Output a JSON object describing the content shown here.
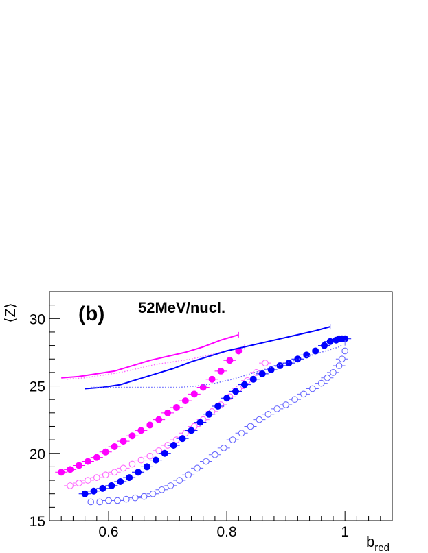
{
  "chart_data": {
    "type": "scatter",
    "panel_label": "(b)",
    "annotation": "52MeV/nucl.",
    "xlabel": "b",
    "xlabel_sub": "red",
    "ylabel": "⟨Z⟩",
    "xlim": [
      0.5,
      1.08
    ],
    "ylim": [
      15,
      32
    ],
    "xticks": [
      {
        "value": 0.6,
        "label": "0.6"
      },
      {
        "value": 0.8,
        "label": "0.8"
      },
      {
        "value": 1.0,
        "label": "1"
      }
    ],
    "yticks": [
      {
        "value": 15,
        "label": "15"
      },
      {
        "value": 20,
        "label": "20"
      },
      {
        "value": 25,
        "label": "25"
      },
      {
        "value": 30,
        "label": "30"
      }
    ],
    "grid": false,
    "series": [
      {
        "style": "filled-marker",
        "color": "#ff00ff",
        "x": [
          0.52,
          0.535,
          0.55,
          0.565,
          0.58,
          0.595,
          0.61,
          0.625,
          0.64,
          0.655,
          0.67,
          0.685,
          0.7,
          0.715,
          0.73,
          0.745,
          0.76,
          0.775,
          0.79,
          0.805,
          0.82
        ],
        "y": [
          18.6,
          18.8,
          19.1,
          19.4,
          19.7,
          20.1,
          20.5,
          20.9,
          21.3,
          21.7,
          22.1,
          22.5,
          23.0,
          23.4,
          23.9,
          24.4,
          24.9,
          25.5,
          26.1,
          26.9,
          27.6
        ]
      },
      {
        "style": "open-marker",
        "color": "#ff66ff",
        "x": [
          0.535,
          0.55,
          0.565,
          0.58,
          0.595,
          0.61,
          0.625,
          0.64,
          0.655,
          0.67,
          0.685,
          0.7,
          0.715,
          0.73,
          0.745,
          0.76,
          0.775,
          0.79,
          0.805,
          0.82,
          0.835,
          0.85,
          0.865
        ],
        "y": [
          17.6,
          17.8,
          18.0,
          18.2,
          18.4,
          18.6,
          18.9,
          19.2,
          19.5,
          19.8,
          20.2,
          20.6,
          21.0,
          21.5,
          22.0,
          22.5,
          23.1,
          23.6,
          24.2,
          24.8,
          25.4,
          26.0,
          26.7
        ]
      },
      {
        "style": "filled-marker",
        "color": "#0000ff",
        "x": [
          0.56,
          0.575,
          0.59,
          0.605,
          0.62,
          0.635,
          0.65,
          0.665,
          0.68,
          0.695,
          0.71,
          0.725,
          0.74,
          0.755,
          0.77,
          0.785,
          0.8,
          0.815,
          0.83,
          0.845,
          0.86,
          0.875,
          0.89,
          0.905,
          0.92,
          0.935,
          0.95,
          0.965,
          0.975,
          0.985,
          0.99,
          0.995,
          1.0
        ],
        "y": [
          17.0,
          17.2,
          17.4,
          17.6,
          17.9,
          18.2,
          18.6,
          19.0,
          19.5,
          20.0,
          20.6,
          21.1,
          21.7,
          22.3,
          22.9,
          23.5,
          24.1,
          24.6,
          25.1,
          25.5,
          25.9,
          26.2,
          26.5,
          26.7,
          27.0,
          27.3,
          27.6,
          28.0,
          28.3,
          28.4,
          28.5,
          28.5,
          28.5
        ]
      },
      {
        "style": "open-marker",
        "color": "#6666ff",
        "x": [
          0.57,
          0.585,
          0.6,
          0.615,
          0.63,
          0.645,
          0.66,
          0.675,
          0.69,
          0.705,
          0.72,
          0.735,
          0.75,
          0.765,
          0.78,
          0.795,
          0.81,
          0.825,
          0.84,
          0.855,
          0.87,
          0.885,
          0.9,
          0.915,
          0.93,
          0.945,
          0.96,
          0.97,
          0.98,
          0.99,
          0.995,
          1.0
        ],
        "y": [
          16.4,
          16.4,
          16.5,
          16.5,
          16.6,
          16.7,
          16.8,
          17.0,
          17.3,
          17.6,
          18.0,
          18.4,
          18.9,
          19.4,
          19.9,
          20.4,
          21.0,
          21.5,
          22.0,
          22.5,
          22.9,
          23.3,
          23.6,
          24.0,
          24.4,
          24.8,
          25.2,
          25.6,
          26.0,
          26.5,
          27.0,
          27.6
        ]
      },
      {
        "style": "solid-line",
        "color": "#ff00ff",
        "x": [
          0.52,
          0.55,
          0.58,
          0.61,
          0.64,
          0.67,
          0.7,
          0.73,
          0.76,
          0.79,
          0.82
        ],
        "y": [
          25.6,
          25.7,
          25.9,
          26.1,
          26.5,
          26.9,
          27.2,
          27.5,
          27.9,
          28.4,
          28.8
        ]
      },
      {
        "style": "dotted-line",
        "color": "#ff66ff",
        "x": [
          0.53,
          0.56,
          0.59,
          0.62,
          0.65,
          0.68,
          0.71,
          0.74,
          0.77,
          0.8,
          0.83
        ],
        "y": [
          25.5,
          25.6,
          25.8,
          26.0,
          26.3,
          26.6,
          26.8,
          27.0,
          27.3,
          27.6,
          27.9
        ]
      },
      {
        "style": "solid-line",
        "color": "#0000ff",
        "x": [
          0.56,
          0.59,
          0.62,
          0.65,
          0.68,
          0.71,
          0.74,
          0.77,
          0.8,
          0.83,
          0.86,
          0.89,
          0.92,
          0.95,
          0.975
        ],
        "y": [
          24.8,
          24.9,
          25.1,
          25.5,
          25.9,
          26.3,
          26.8,
          27.2,
          27.6,
          27.9,
          28.2,
          28.5,
          28.8,
          29.1,
          29.4
        ]
      },
      {
        "style": "dotted-line",
        "color": "#6666ff",
        "x": [
          0.57,
          0.6,
          0.63,
          0.66,
          0.69,
          0.72,
          0.75,
          0.78,
          0.81,
          0.84,
          0.87,
          0.9,
          0.93,
          0.96,
          0.99,
          1.0
        ],
        "y": [
          24.9,
          24.9,
          24.9,
          24.9,
          24.9,
          24.9,
          25.0,
          25.2,
          25.5,
          25.9,
          26.3,
          26.7,
          27.1,
          27.5,
          27.9,
          28.2
        ]
      }
    ]
  }
}
